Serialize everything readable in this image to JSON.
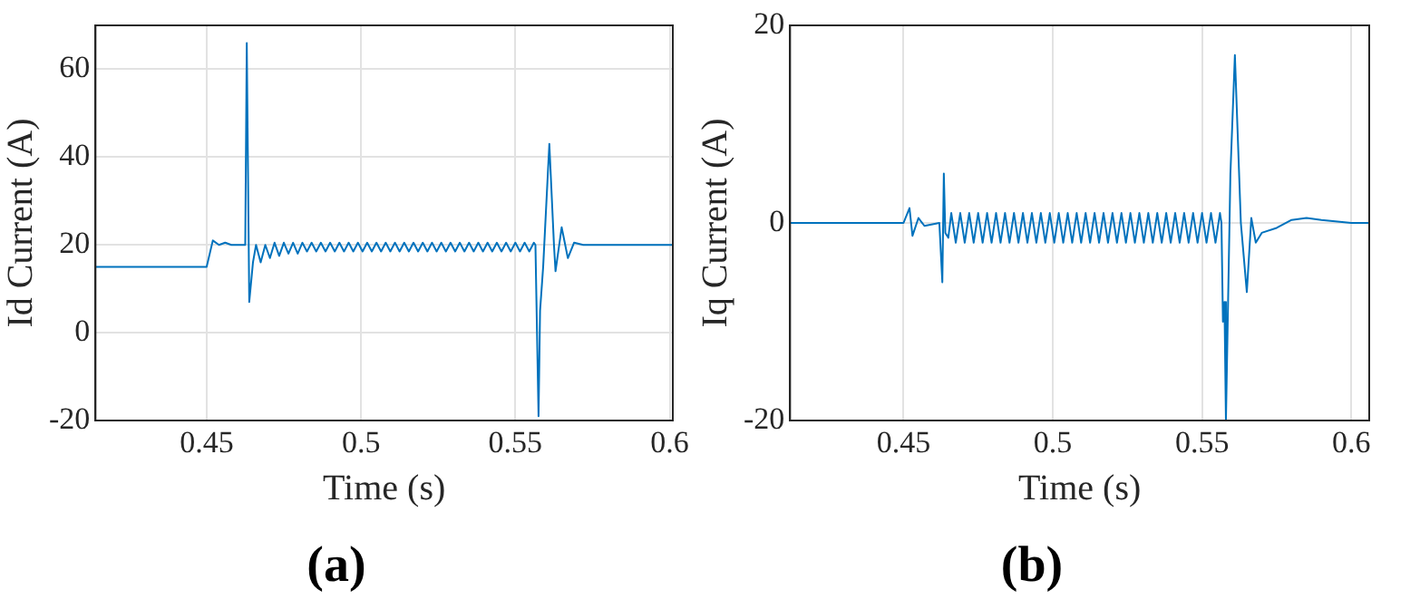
{
  "chart_data": [
    {
      "type": "line",
      "title": "(a)",
      "xlabel": "Time (s)",
      "ylabel": "Id Current (A)",
      "color": "#0072bd",
      "grid": true,
      "xlim": [
        0.414,
        0.601
      ],
      "xticks": [
        0.45,
        0.5,
        0.55,
        0.6
      ],
      "ylim": [
        -20,
        70
      ],
      "yticks": [
        -20,
        0,
        20,
        40,
        60
      ],
      "x": [
        0.414,
        0.45,
        0.452,
        0.454,
        0.456,
        0.458,
        0.462,
        0.4625,
        0.463,
        0.4638,
        0.465,
        0.466,
        0.4675,
        0.469,
        0.4705,
        0.472,
        0.4735,
        0.475,
        0.4765,
        0.478,
        0.4795,
        0.481,
        0.4825,
        0.484,
        0.4855,
        0.487,
        0.4885,
        0.49,
        0.4915,
        0.493,
        0.4945,
        0.496,
        0.4975,
        0.499,
        0.5005,
        0.502,
        0.5035,
        0.505,
        0.5065,
        0.508,
        0.5095,
        0.511,
        0.5125,
        0.514,
        0.5155,
        0.517,
        0.5185,
        0.52,
        0.5215,
        0.523,
        0.5245,
        0.526,
        0.5275,
        0.529,
        0.5305,
        0.532,
        0.5335,
        0.535,
        0.5365,
        0.538,
        0.5395,
        0.541,
        0.5425,
        0.544,
        0.5455,
        0.547,
        0.5485,
        0.55,
        0.5515,
        0.553,
        0.5545,
        0.556,
        0.5565,
        0.5575,
        0.558,
        0.559,
        0.561,
        0.5625,
        0.563,
        0.565,
        0.567,
        0.569,
        0.572,
        0.601
      ],
      "values": [
        15,
        15,
        21,
        20,
        20.5,
        20,
        20,
        20,
        66,
        7,
        16,
        20,
        16,
        20,
        17,
        20.5,
        17.5,
        20.5,
        18,
        20.5,
        18,
        20.5,
        18.5,
        20.5,
        18.5,
        20.5,
        18.5,
        20.5,
        18.5,
        20.5,
        18.5,
        20.5,
        18.5,
        20.5,
        18.5,
        20.5,
        18.5,
        20.5,
        18.5,
        20.5,
        18.5,
        20.5,
        18.5,
        20.5,
        18.5,
        20.5,
        18.5,
        20.5,
        18.5,
        20.5,
        18.5,
        20.5,
        18.5,
        20.5,
        18.5,
        20.5,
        18.5,
        20.5,
        18.5,
        20.5,
        18.5,
        20.5,
        18.5,
        20.5,
        18.5,
        20.5,
        18.5,
        20.5,
        18.5,
        20.5,
        18.5,
        20.5,
        20,
        -19,
        5,
        15,
        43,
        20,
        14,
        24,
        17,
        20.5,
        20,
        20
      ]
    },
    {
      "type": "line",
      "title": "(b)",
      "xlabel": "Time (s)",
      "ylabel": "Iq Current (A)",
      "color": "#0072bd",
      "grid": true,
      "xlim": [
        0.412,
        0.606
      ],
      "xticks": [
        0.45,
        0.5,
        0.55,
        0.6
      ],
      "ylim": [
        -20,
        20
      ],
      "yticks": [
        -20,
        0,
        20
      ],
      "x": [
        0.412,
        0.45,
        0.452,
        0.453,
        0.455,
        0.457,
        0.462,
        0.463,
        0.4635,
        0.464,
        0.465,
        0.466,
        0.4675,
        0.469,
        0.4705,
        0.472,
        0.4735,
        0.475,
        0.4765,
        0.478,
        0.4795,
        0.481,
        0.4825,
        0.484,
        0.4855,
        0.487,
        0.4885,
        0.49,
        0.4915,
        0.493,
        0.4945,
        0.496,
        0.4975,
        0.499,
        0.5005,
        0.502,
        0.5035,
        0.505,
        0.5065,
        0.508,
        0.5095,
        0.511,
        0.5125,
        0.514,
        0.5155,
        0.517,
        0.5185,
        0.52,
        0.5215,
        0.523,
        0.5245,
        0.526,
        0.5275,
        0.529,
        0.5305,
        0.532,
        0.5335,
        0.535,
        0.5365,
        0.538,
        0.5395,
        0.541,
        0.5425,
        0.544,
        0.5455,
        0.547,
        0.5485,
        0.55,
        0.5515,
        0.553,
        0.5545,
        0.556,
        0.5565,
        0.557,
        0.5575,
        0.558,
        0.5595,
        0.561,
        0.563,
        0.565,
        0.5665,
        0.568,
        0.57,
        0.575,
        0.58,
        0.585,
        0.59,
        0.6,
        0.606
      ],
      "values": [
        0,
        0,
        1.5,
        -1.3,
        0.5,
        -0.3,
        0,
        -6,
        5,
        -1,
        -1.5,
        1,
        -2,
        1,
        -2,
        1,
        -2,
        1,
        -2,
        1,
        -2,
        1,
        -2,
        1,
        -2,
        1,
        -2,
        1,
        -2,
        1,
        -2,
        1,
        -2,
        1,
        -2,
        1,
        -2,
        1,
        -2,
        1,
        -2,
        1,
        -2,
        1,
        -2,
        1,
        -2,
        1,
        -2,
        1,
        -2,
        1,
        -2,
        1,
        -2,
        1,
        -2,
        1,
        -2,
        1,
        -2,
        1,
        -2,
        1,
        -2,
        1,
        -2,
        1,
        -2,
        1,
        -2,
        1,
        0,
        -10,
        -8,
        -20,
        5,
        17,
        0,
        -7,
        0.5,
        -2,
        -1,
        -0.5,
        0.3,
        0.5,
        0.3,
        0,
        0
      ]
    }
  ]
}
